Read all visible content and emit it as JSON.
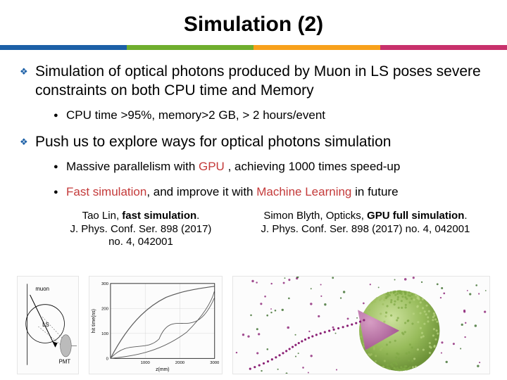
{
  "title": "Simulation (2)",
  "stripe_colors": [
    "#1c60a7",
    "#6fae2e",
    "#f8a11b",
    "#c8316b"
  ],
  "bullets": {
    "b1_color": "#1c60a7",
    "b1_text": "Simulation of optical photons produced by Muon in LS poses severe constraints on both CPU time and Memory",
    "b1_1_text": "CPU time >95%, memory>2 GB, > 2 hours/event",
    "b2_text": "Push us to explore ways for optical photons simulation",
    "b2_1": {
      "pre": "Massive parallelism with ",
      "hl1": "GPU",
      "mid": " , achieving 1000 times speed-up",
      "hl1_color": "#c43a3a"
    },
    "b2_2": {
      "pre": "Fast simulation",
      "mid": ", and improve it with ",
      "hl2": "Machine Learning",
      "post": " in future",
      "hl_pre_color": "#c43a3a",
      "hl2_color": "#c43a3a"
    }
  },
  "cites": {
    "left_l1a": "Tao Lin, ",
    "left_l1b": "fast simulation",
    "left_l1c": ".",
    "left_l2": "J. Phys. Conf. Ser. 898 (2017)",
    "left_l3": "no. 4, 042001",
    "right_l1a": "Simon Blyth, Opticks, ",
    "right_l1b": "GPU full simulation",
    "right_l1c": ".",
    "right_l2": "J. Phys. Conf. Ser. 898 (2017) no. 4, 042001"
  },
  "figures": {
    "fig1": {
      "axis_color": "#000000",
      "muon_label": "muon",
      "ls_label": "LS",
      "pmt_label": "PMT",
      "pmt_color": "#888888"
    },
    "fig2": {
      "axis_color": "#000000",
      "grid_color": "#d0d0d0",
      "line_color": "#5b5b5b",
      "x_ticks": [
        "1000",
        "2000",
        "3000"
      ],
      "y_ticks": [
        "0",
        "100",
        "200",
        "300"
      ],
      "x_label": "z(mm)",
      "y_label": "hit time(ns)"
    },
    "fig3": {
      "bg": "#ffffff",
      "sphere_colors": [
        "#9fbf62",
        "#7fa845",
        "#b9d481"
      ],
      "track_dot_color": "#8a1f74",
      "cone_color": "#b15da0"
    }
  }
}
